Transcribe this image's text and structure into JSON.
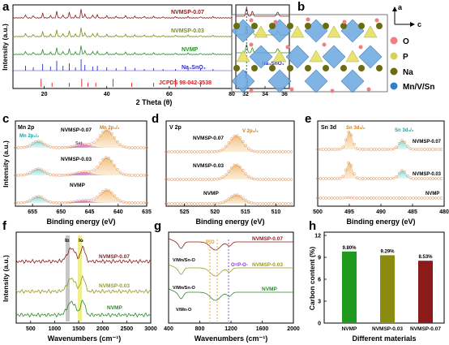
{
  "panel_letters": {
    "a": "a",
    "b": "b",
    "c": "c",
    "d": "d",
    "e": "e",
    "f": "f",
    "g": "g",
    "h": "h"
  },
  "watermark": "",
  "chart_data": [
    {
      "id": "a",
      "type": "line",
      "ylabel": "Intensity (a.u.)",
      "xlabel": "2 Theta (θ)",
      "xticks_main": [
        20,
        40,
        60,
        80
      ],
      "xticks_inset": [
        32,
        34,
        36
      ],
      "series": [
        {
          "name": "NVMSP-0.07",
          "color": "#8b1a1a"
        },
        {
          "name": "NVMSP-0.03",
          "color": "#7f8b14"
        },
        {
          "name": "NVMP",
          "color": "#2a8a2a"
        },
        {
          "name": "Na₄SnO₄",
          "color": "#2a2acc"
        },
        {
          "name": "JCPDS 98-042-3538",
          "color": "#e01c1c"
        }
      ],
      "inset_annotation": "Na₄SnO₄"
    },
    {
      "id": "b",
      "type": "diagram",
      "axes": [
        "a",
        "c"
      ],
      "legend": [
        {
          "label": "O",
          "color": "#f08080"
        },
        {
          "label": "P",
          "color": "#d8d05a"
        },
        {
          "label": "Na",
          "color": "#6b6b10"
        },
        {
          "label": "Mn/V/Sn",
          "color": "#2f7fd0"
        }
      ]
    },
    {
      "id": "c",
      "type": "line",
      "title": "Mn 2p",
      "xlabel": "Binding energy (eV)",
      "ylabel": "Intensity (a.u.)",
      "xticks": [
        655,
        650,
        645,
        640,
        635
      ],
      "annotations": [
        "Mn 2p₁/₂",
        "Mn 2p₃/₂",
        "Sat."
      ],
      "series": [
        "NVMSP-0.07",
        "NVMSP-0.03",
        "NVMP"
      ]
    },
    {
      "id": "d",
      "type": "line",
      "title": "V 2p",
      "xlabel": "Binding energy (eV)",
      "xticks": [
        525,
        520,
        515,
        510
      ],
      "annotations": [
        "V 2p₃/₂"
      ],
      "series": [
        "NVMSP-0.07",
        "NVMSP-0.03",
        "NVMP"
      ]
    },
    {
      "id": "e",
      "type": "line",
      "title": "Sn 3d",
      "xlabel": "Binding energy (eV)",
      "xticks": [
        500,
        495,
        490,
        485,
        480
      ],
      "annotations": [
        "Sn 3d₅/₂",
        "Sn 3d₃/₂"
      ],
      "series": [
        "NVMSP-0.07",
        "NVMSP-0.03",
        "NVMP"
      ]
    },
    {
      "id": "f",
      "type": "line",
      "xlabel": "Wavenumbers (cm⁻¹)",
      "ylabel": "Intensity (a.u.)",
      "xticks": [
        500,
        1000,
        1500,
        2000,
        2500,
        3000
      ],
      "annotations": [
        "Iᴅ",
        "Iɢ"
      ],
      "series": [
        {
          "name": "NVMSP-0.07",
          "color": "#8b1a1a"
        },
        {
          "name": "NVMSP-0.03",
          "color": "#9a9a20"
        },
        {
          "name": "NVMP",
          "color": "#2a8a2a"
        }
      ]
    },
    {
      "id": "g",
      "type": "line",
      "xlabel": "Wavenumbers (cm⁻¹)",
      "xticks": [
        400,
        800,
        1200,
        1600,
        2000
      ],
      "annotations": [
        "P-O",
        "O=P-O-",
        "V/Mn/Sn-O",
        "V/Mn/Sn-O",
        "V/Mn-O"
      ],
      "series": [
        {
          "name": "NVMSP-0.07",
          "color": "#8b1a1a"
        },
        {
          "name": "NVMSP-0.03",
          "color": "#9a9a20"
        },
        {
          "name": "NVMP",
          "color": "#2a8a2a"
        }
      ]
    },
    {
      "id": "h",
      "type": "bar",
      "xlabel": "Different materials",
      "ylabel": "Carbon content (%)",
      "ylim": [
        0,
        12
      ],
      "yticks": [
        0,
        3,
        6,
        9,
        12
      ],
      "categories": [
        "NVMP",
        "NVMSP-0.03",
        "NVMSP-0.07"
      ],
      "values": [
        9.8,
        9.29,
        8.53
      ],
      "value_labels": [
        "9.80%",
        "9.29%",
        "8.53%"
      ],
      "colors": [
        "#1f9a1f",
        "#8b8b10",
        "#8b1a1a"
      ]
    }
  ]
}
